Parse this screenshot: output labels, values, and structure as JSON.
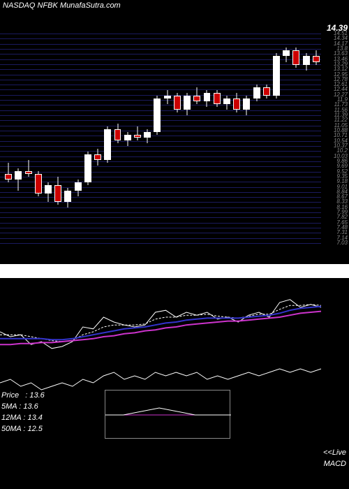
{
  "header": {
    "title": "NASDAQ NFBK MunafaSutra.com"
  },
  "candlestick": {
    "type": "candlestick",
    "background_color": "#000000",
    "grid_color": "#1a1a5e",
    "up_color": "#ffffff",
    "down_color": "#cc0000",
    "wick_color": "#ffffff",
    "current_price": "14.39",
    "price_color": "#ffffff",
    "ylim": [
      7.03,
      14.51
    ],
    "y_ticks": [
      "14.51",
      "14.34",
      "14.17",
      "13.8",
      "13.63",
      "13.46",
      "13.29",
      "13.12",
      "12.95",
      "12.78",
      "12.61",
      "12.44",
      "12.27",
      "11.9",
      "11.73",
      "11.56",
      "11.39",
      "11.22",
      "11.05",
      "10.88",
      "10.71",
      "10.54",
      "10.37",
      "10.2",
      "10.03",
      "9.86",
      "9.69",
      "9.52",
      "9.35",
      "9.18",
      "9.01",
      "8.84",
      "8.67",
      "8.33",
      "8.16",
      "7.99",
      "7.82",
      "7.65",
      "7.48",
      "7.31",
      "7.14",
      "7.03"
    ],
    "candles": [
      {
        "x": 0,
        "open": 9.5,
        "high": 9.9,
        "low": 9.2,
        "close": 9.3
      },
      {
        "x": 1,
        "open": 9.3,
        "high": 9.7,
        "low": 8.9,
        "close": 9.6
      },
      {
        "x": 2,
        "open": 9.6,
        "high": 10.0,
        "low": 9.4,
        "close": 9.5
      },
      {
        "x": 3,
        "open": 9.5,
        "high": 9.6,
        "low": 8.7,
        "close": 8.8
      },
      {
        "x": 4,
        "open": 8.8,
        "high": 9.2,
        "low": 8.5,
        "close": 9.1
      },
      {
        "x": 5,
        "open": 9.1,
        "high": 9.4,
        "low": 8.4,
        "close": 8.5
      },
      {
        "x": 6,
        "open": 8.5,
        "high": 9.0,
        "low": 8.3,
        "close": 8.9
      },
      {
        "x": 7,
        "open": 8.9,
        "high": 9.3,
        "low": 8.7,
        "close": 9.2
      },
      {
        "x": 8,
        "open": 9.2,
        "high": 10.3,
        "low": 9.1,
        "close": 10.2
      },
      {
        "x": 9,
        "open": 10.2,
        "high": 10.4,
        "low": 9.8,
        "close": 10.0
      },
      {
        "x": 10,
        "open": 10.0,
        "high": 11.2,
        "low": 9.9,
        "close": 11.1
      },
      {
        "x": 11,
        "open": 11.1,
        "high": 11.3,
        "low": 10.6,
        "close": 10.7
      },
      {
        "x": 12,
        "open": 10.7,
        "high": 11.0,
        "low": 10.5,
        "close": 10.9
      },
      {
        "x": 13,
        "open": 10.9,
        "high": 11.2,
        "low": 10.7,
        "close": 10.8
      },
      {
        "x": 14,
        "open": 10.8,
        "high": 11.1,
        "low": 10.6,
        "close": 11.0
      },
      {
        "x": 15,
        "open": 11.0,
        "high": 12.3,
        "low": 10.9,
        "close": 12.2
      },
      {
        "x": 16,
        "open": 12.2,
        "high": 12.5,
        "low": 12.0,
        "close": 12.3
      },
      {
        "x": 17,
        "open": 12.3,
        "high": 12.4,
        "low": 11.7,
        "close": 11.8
      },
      {
        "x": 18,
        "open": 11.8,
        "high": 12.4,
        "low": 11.6,
        "close": 12.3
      },
      {
        "x": 19,
        "open": 12.3,
        "high": 12.6,
        "low": 12.0,
        "close": 12.1
      },
      {
        "x": 20,
        "open": 12.1,
        "high": 12.5,
        "low": 11.9,
        "close": 12.4
      },
      {
        "x": 21,
        "open": 12.4,
        "high": 12.5,
        "low": 11.9,
        "close": 12.0
      },
      {
        "x": 22,
        "open": 12.0,
        "high": 12.3,
        "low": 11.8,
        "close": 12.2
      },
      {
        "x": 23,
        "open": 12.2,
        "high": 12.4,
        "low": 11.7,
        "close": 11.8
      },
      {
        "x": 24,
        "open": 11.8,
        "high": 12.3,
        "low": 11.6,
        "close": 12.2
      },
      {
        "x": 25,
        "open": 12.2,
        "high": 12.7,
        "low": 12.1,
        "close": 12.6
      },
      {
        "x": 26,
        "open": 12.6,
        "high": 12.7,
        "low": 12.2,
        "close": 12.3
      },
      {
        "x": 27,
        "open": 12.3,
        "high": 13.8,
        "low": 12.2,
        "close": 13.7
      },
      {
        "x": 28,
        "open": 13.7,
        "high": 14.0,
        "low": 13.5,
        "close": 13.9
      },
      {
        "x": 29,
        "open": 13.9,
        "high": 14.0,
        "low": 13.3,
        "close": 13.4
      },
      {
        "x": 30,
        "open": 13.4,
        "high": 13.8,
        "low": 13.2,
        "close": 13.7
      },
      {
        "x": 31,
        "open": 13.7,
        "high": 13.9,
        "low": 13.4,
        "close": 13.5
      }
    ]
  },
  "ma_panel": {
    "type": "line",
    "background_color": "#000000",
    "lines": [
      {
        "name": "price",
        "color": "#ffffff",
        "width": 1,
        "dash": "none",
        "points": [
          55,
          60,
          58,
          68,
          65,
          72,
          70,
          65,
          50,
          52,
          40,
          45,
          48,
          50,
          48,
          35,
          33,
          40,
          35,
          38,
          35,
          42,
          40,
          45,
          38,
          35,
          40,
          25,
          22,
          30,
          27,
          30
        ]
      },
      {
        "name": "ma_dotted",
        "color": "#ffffff",
        "width": 1,
        "dash": "3,2",
        "points": [
          58,
          58,
          58,
          60,
          62,
          64,
          65,
          64,
          58,
          55,
          50,
          48,
          48,
          48,
          47,
          42,
          40,
          40,
          38,
          38,
          37,
          39,
          40,
          41,
          39,
          37,
          37,
          32,
          28,
          28,
          27,
          28
        ]
      },
      {
        "name": "ma_blue",
        "color": "#3333cc",
        "width": 2,
        "dash": "none",
        "points": [
          62,
          62,
          62,
          62,
          62,
          63,
          63,
          62,
          60,
          58,
          56,
          54,
          52,
          51,
          50,
          48,
          46,
          45,
          43,
          42,
          41,
          41,
          41,
          41,
          40,
          39,
          38,
          36,
          33,
          31,
          30,
          29
        ]
      },
      {
        "name": "ma_magenta",
        "color": "#cc33cc",
        "width": 2,
        "dash": "none",
        "points": [
          68,
          68,
          67,
          67,
          66,
          66,
          65,
          64,
          63,
          62,
          60,
          59,
          57,
          56,
          54,
          53,
          51,
          50,
          48,
          47,
          46,
          45,
          44,
          44,
          43,
          42,
          41,
          40,
          38,
          36,
          35,
          34
        ]
      }
    ]
  },
  "macd_panel": {
    "type": "line",
    "background_color": "#000000",
    "info": {
      "price_label": "Price",
      "price_value": "13.6",
      "ma5_label": "5MA",
      "ma5_value": "13.6",
      "ma12_label": "12MA",
      "ma12_value": "13.4",
      "ma50_label": "50MA",
      "ma50_value": "12.5"
    },
    "live_label": "<<Live",
    "macd_label": "MACD",
    "main_line": {
      "color": "#ffffff",
      "width": 1,
      "points": [
        30,
        25,
        35,
        30,
        40,
        35,
        30,
        35,
        25,
        30,
        20,
        15,
        25,
        20,
        25,
        15,
        20,
        15,
        20,
        15,
        25,
        20,
        25,
        20,
        15,
        20,
        15,
        10,
        15,
        10,
        15,
        10
      ]
    },
    "inset": {
      "line1": {
        "color": "#ffffff",
        "points": [
          35,
          35,
          30,
          25,
          30,
          35,
          35,
          35
        ]
      },
      "line2": {
        "color": "#cc33cc",
        "points": [
          35,
          35,
          35,
          35,
          35,
          35,
          35,
          35
        ]
      }
    }
  }
}
